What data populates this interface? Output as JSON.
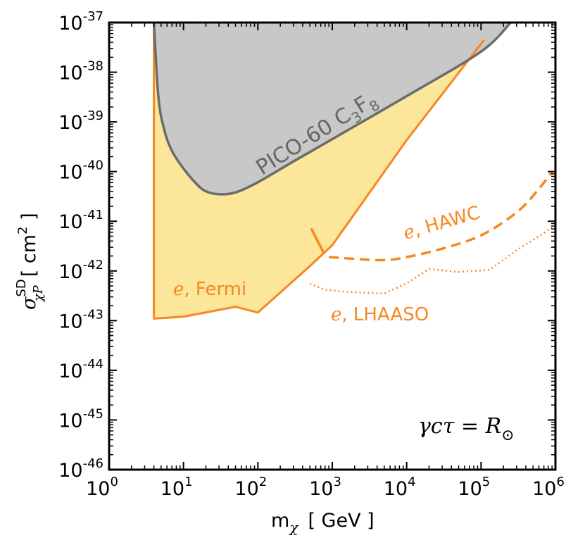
{
  "chart_data": {
    "type": "area",
    "xscale": "log",
    "yscale": "log",
    "xlim": [
      1,
      1000000
    ],
    "ylim": [
      1e-46,
      1e-37
    ],
    "xlabel": {
      "base": "m",
      "sub": "χ",
      "unit": "[ GeV ]"
    },
    "ylabel": {
      "base": "σ",
      "sup": "SD",
      "sub": "χP",
      "unit": "[ cm",
      "unit_sup": "2",
      "unit_end": " ]"
    },
    "x_ticks": [
      {
        "value": 1,
        "base": "10",
        "exp": "0"
      },
      {
        "value": 10,
        "base": "10",
        "exp": "1"
      },
      {
        "value": 100,
        "base": "10",
        "exp": "2"
      },
      {
        "value": 1000,
        "base": "10",
        "exp": "3"
      },
      {
        "value": 10000,
        "base": "10",
        "exp": "4"
      },
      {
        "value": 100000,
        "base": "10",
        "exp": "5"
      },
      {
        "value": 1000000,
        "base": "10",
        "exp": "6"
      }
    ],
    "y_ticks": [
      {
        "value": 1e-37,
        "base": "10",
        "exp": "-37"
      },
      {
        "value": 1e-38,
        "base": "10",
        "exp": "-38"
      },
      {
        "value": 1e-39,
        "base": "10",
        "exp": "-39"
      },
      {
        "value": 1e-40,
        "base": "10",
        "exp": "-40"
      },
      {
        "value": 1e-41,
        "base": "10",
        "exp": "-41"
      },
      {
        "value": 1e-42,
        "base": "10",
        "exp": "-42"
      },
      {
        "value": 1e-43,
        "base": "10",
        "exp": "-43"
      },
      {
        "value": 1e-44,
        "base": "10",
        "exp": "-44"
      },
      {
        "value": 1e-45,
        "base": "10",
        "exp": "-45"
      },
      {
        "value": 1e-46,
        "base": "10",
        "exp": "-46"
      }
    ],
    "series": [
      {
        "name": "PICO-60 C3F8",
        "style": "filled-region",
        "color": "#6b6b6b",
        "fill": "#c8c8c8",
        "points": [
          [
            4,
            1e-37
          ],
          [
            4.6,
            3.2e-39
          ],
          [
            5.5,
            7e-40
          ],
          [
            7,
            2.6e-40
          ],
          [
            10,
            1.15e-40
          ],
          [
            15,
            5.6e-41
          ],
          [
            20,
            4e-41
          ],
          [
            30,
            3.5e-41
          ],
          [
            50,
            3.8e-41
          ],
          [
            100,
            6.1e-41
          ],
          [
            300,
            1.6e-40
          ],
          [
            1000,
            4.5e-40
          ],
          [
            10000,
            3.3e-39
          ],
          [
            100000,
            2.6e-38
          ],
          [
            250000,
            1e-37
          ]
        ]
      },
      {
        "name": "e, Fermi",
        "style": "filled-region",
        "color": "#f7871f",
        "fill": "#fbe69a",
        "points": [
          [
            4,
            1e-37
          ],
          [
            4,
            1.1e-43
          ],
          [
            10,
            1.2e-43
          ],
          [
            50,
            1.9e-43
          ],
          [
            100,
            1.45e-43
          ],
          [
            500,
            1.25e-42
          ],
          [
            1000,
            3.3e-42
          ],
          [
            10000,
            4.3e-40
          ],
          [
            110000,
            4.5e-38
          ]
        ]
      },
      {
        "name": "e, HAWC",
        "style": "dashed",
        "color": "#f7871f",
        "points": [
          [
            900,
            1.9e-42
          ],
          [
            2000,
            1.75e-42
          ],
          [
            5000,
            1.65e-42
          ],
          [
            10000,
            1.9e-42
          ],
          [
            30000,
            2.8e-42
          ],
          [
            100000,
            5.2e-42
          ],
          [
            300000,
            1.5e-41
          ],
          [
            600000,
            4.5e-41
          ],
          [
            900000,
            1e-40
          ]
        ]
      },
      {
        "name": "e, HAWC stub",
        "style": "dashed",
        "color": "#f7871f",
        "points": [
          [
            520,
            7.2e-42
          ],
          [
            780,
            2.2e-42
          ]
        ]
      },
      {
        "name": "e, LHAASO",
        "style": "dotted",
        "color": "#f7871f",
        "points": [
          [
            500,
            5.5e-43
          ],
          [
            800,
            4.2e-43
          ],
          [
            1500,
            3.8e-43
          ],
          [
            5000,
            3.5e-43
          ],
          [
            10000,
            5.6e-43
          ],
          [
            20000,
            1.1e-42
          ],
          [
            50000,
            9.5e-43
          ],
          [
            130000,
            1.05e-42
          ],
          [
            300000,
            2.6e-42
          ],
          [
            600000,
            5e-42
          ],
          [
            900000,
            7.5e-42
          ]
        ]
      }
    ],
    "annotations": {
      "pico_text": "PICO-60 C",
      "pico_sub1": "3",
      "pico_mid": "F",
      "pico_sub2": "8",
      "fermi_e": "e",
      "fermi_text": ", Fermi",
      "hawc_e": "e",
      "hawc_text": ", HAWC",
      "lhaaso_e": "e",
      "lhaaso_text": ", LHAASO",
      "condition": "γcτ = R",
      "condition_sub": "⊙"
    }
  }
}
